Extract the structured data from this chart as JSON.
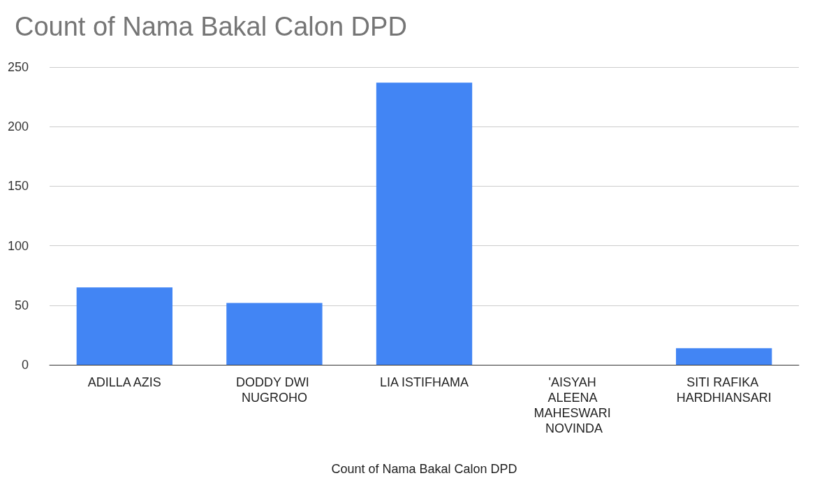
{
  "chart_data": {
    "type": "bar",
    "title": "Count of Nama Bakal Calon DPD",
    "xlabel": "Count of Nama Bakal Calon DPD",
    "categories": [
      "ADILLA AZIS",
      "DODDY DWI NUGROHO",
      "LIA ISTIFHAMA",
      "'AISYAH ALEENA MAHESWARI NOVINDA",
      "SITI RAFIKA HARDHIANSARI"
    ],
    "values": [
      65,
      52,
      237,
      0,
      14
    ],
    "color": "#4285f4",
    "ylim": [
      0,
      250
    ],
    "yticks": [
      0,
      50,
      100,
      150,
      200,
      250
    ],
    "grid": "y"
  }
}
